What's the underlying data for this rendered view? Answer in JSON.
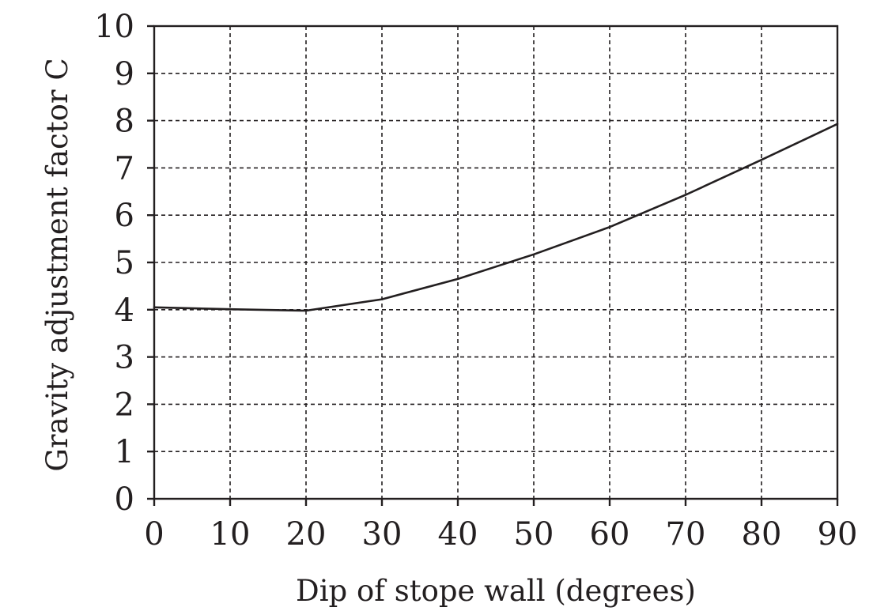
{
  "chart_data": {
    "type": "line",
    "title": "",
    "xlabel": "Dip of stope wall (degrees)",
    "ylabel": "Gravity adjustment factor C",
    "xlim": [
      0,
      90
    ],
    "ylim": [
      0,
      10
    ],
    "x_ticks": [
      0,
      10,
      20,
      30,
      40,
      50,
      60,
      70,
      80,
      90
    ],
    "y_ticks": [
      0,
      1,
      2,
      3,
      4,
      5,
      6,
      7,
      8,
      9,
      10
    ],
    "x_tick_labels": [
      "0",
      "10",
      "20",
      "30",
      "40",
      "50",
      "60",
      "70",
      "80",
      "90"
    ],
    "y_tick_labels": [
      "0",
      "1",
      "2",
      "3",
      "4",
      "5",
      "6",
      "7",
      "8",
      "9",
      "10"
    ],
    "grid": true,
    "grid_style": "dashed",
    "legend": "none",
    "series": [
      {
        "color": "#231f20",
        "x": [
          0,
          10,
          20,
          30,
          40,
          50,
          60,
          70,
          80,
          90
        ],
        "y": [
          4.05,
          4.01,
          3.98,
          4.22,
          4.65,
          5.17,
          5.75,
          6.43,
          7.17,
          7.93
        ]
      }
    ]
  }
}
